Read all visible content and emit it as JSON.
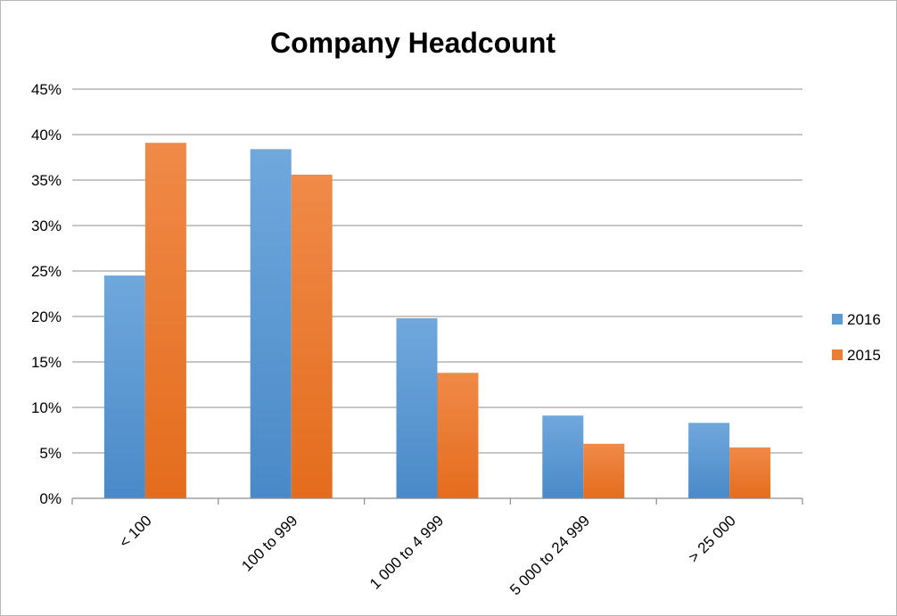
{
  "chart_data": {
    "type": "bar",
    "title": "Company Headcount",
    "categories": [
      "< 100",
      "100 to 999",
      "1 000 to 4 999",
      "5 000 to 24 999",
      "> 25 000"
    ],
    "series": [
      {
        "name": "2016",
        "values": [
          24.5,
          38.4,
          19.8,
          9.1,
          8.3
        ]
      },
      {
        "name": "2015",
        "values": [
          39.1,
          35.6,
          13.8,
          6.0,
          5.6
        ]
      }
    ],
    "ylim": [
      0,
      45
    ],
    "yticks": [
      0,
      5,
      10,
      15,
      20,
      25,
      30,
      35,
      40,
      45
    ],
    "ytick_format": "percent",
    "xlabel": "",
    "ylabel": "",
    "grid": true,
    "legend_position": "right",
    "colors": {
      "2016": "#5b9bd5",
      "2015": "#ed7d31"
    }
  }
}
